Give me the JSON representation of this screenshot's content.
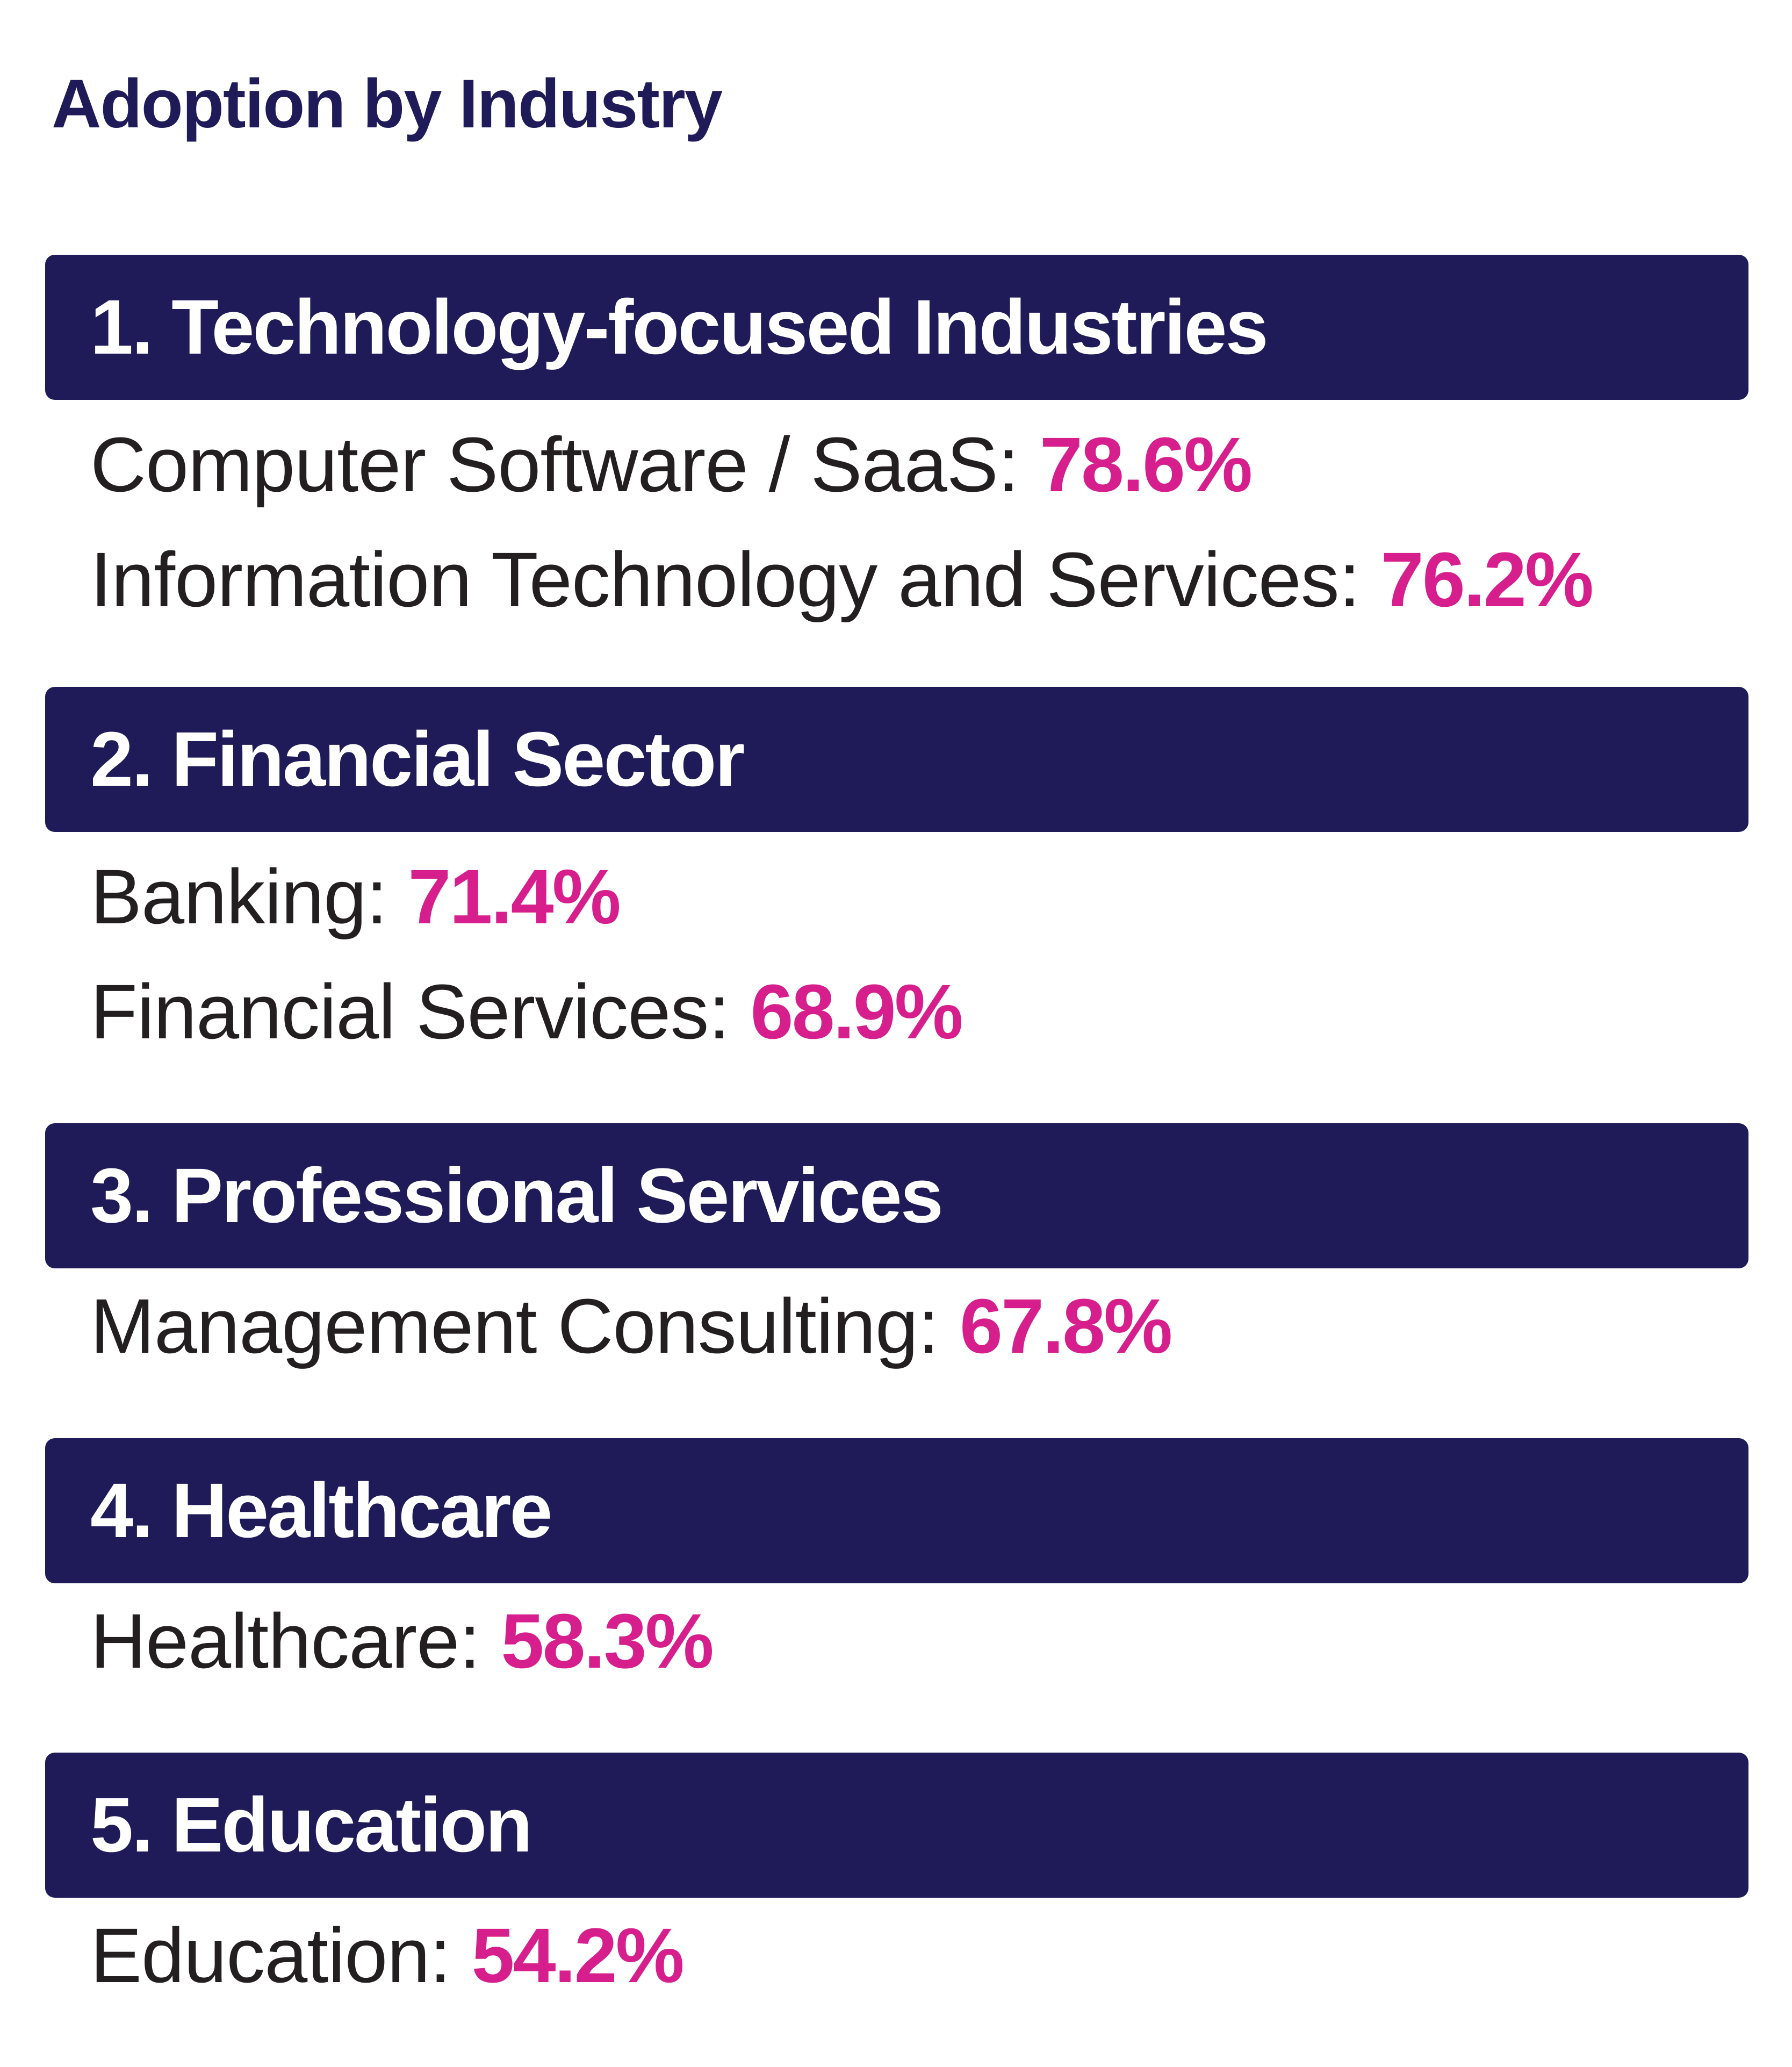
{
  "title": "Adoption by Industry",
  "colors": {
    "header_bg": "#1e1b58",
    "header_text": "#ffffff",
    "body_text": "#231f20",
    "value_accent": "#d61f8c"
  },
  "sections": [
    {
      "heading": "1. Technology-focused Industries",
      "items": [
        {
          "label": "Computer Software / SaaS:",
          "value": "78.6%"
        },
        {
          "label": "Information Technology and Services:",
          "value": "76.2%"
        }
      ]
    },
    {
      "heading": "2. Financial Sector",
      "items": [
        {
          "label": "Banking:",
          "value": "71.4%"
        },
        {
          "label": "Financial Services:",
          "value": "68.9%"
        }
      ]
    },
    {
      "heading": "3. Professional Services",
      "items": [
        {
          "label": "Management Consulting:",
          "value": "67.8%"
        }
      ]
    },
    {
      "heading": "4. Healthcare",
      "items": [
        {
          "label": "Healthcare:",
          "value": "58.3%"
        }
      ]
    },
    {
      "heading": "5. Education",
      "items": [
        {
          "label": "Education:",
          "value": "54.2%"
        }
      ]
    }
  ]
}
